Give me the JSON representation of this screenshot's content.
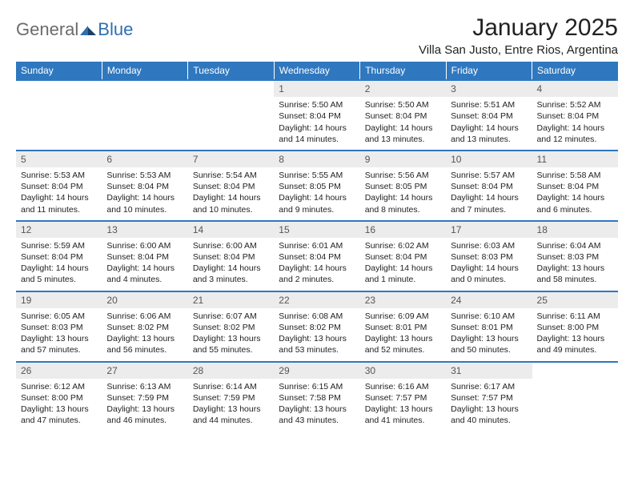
{
  "logo": {
    "word1": "General",
    "word2": "Blue"
  },
  "title": "January 2025",
  "location": "Villa San Justo, Entre Rios, Argentina",
  "colors": {
    "header_bg": "#2f78bf",
    "header_fg": "#ffffff",
    "daynum_bg": "#ececec",
    "week_border": "#2f78bf",
    "text": "#222222",
    "logo_gray": "#6b6b6b",
    "logo_blue": "#2f6fb0"
  },
  "day_headers": [
    "Sunday",
    "Monday",
    "Tuesday",
    "Wednesday",
    "Thursday",
    "Friday",
    "Saturday"
  ],
  "weeks": [
    [
      {
        "blank": true
      },
      {
        "blank": true
      },
      {
        "blank": true
      },
      {
        "n": "1",
        "sunrise": "5:50 AM",
        "sunset": "8:04 PM",
        "daylight": "14 hours and 14 minutes."
      },
      {
        "n": "2",
        "sunrise": "5:50 AM",
        "sunset": "8:04 PM",
        "daylight": "14 hours and 13 minutes."
      },
      {
        "n": "3",
        "sunrise": "5:51 AM",
        "sunset": "8:04 PM",
        "daylight": "14 hours and 13 minutes."
      },
      {
        "n": "4",
        "sunrise": "5:52 AM",
        "sunset": "8:04 PM",
        "daylight": "14 hours and 12 minutes."
      }
    ],
    [
      {
        "n": "5",
        "sunrise": "5:53 AM",
        "sunset": "8:04 PM",
        "daylight": "14 hours and 11 minutes."
      },
      {
        "n": "6",
        "sunrise": "5:53 AM",
        "sunset": "8:04 PM",
        "daylight": "14 hours and 10 minutes."
      },
      {
        "n": "7",
        "sunrise": "5:54 AM",
        "sunset": "8:04 PM",
        "daylight": "14 hours and 10 minutes."
      },
      {
        "n": "8",
        "sunrise": "5:55 AM",
        "sunset": "8:05 PM",
        "daylight": "14 hours and 9 minutes."
      },
      {
        "n": "9",
        "sunrise": "5:56 AM",
        "sunset": "8:05 PM",
        "daylight": "14 hours and 8 minutes."
      },
      {
        "n": "10",
        "sunrise": "5:57 AM",
        "sunset": "8:04 PM",
        "daylight": "14 hours and 7 minutes."
      },
      {
        "n": "11",
        "sunrise": "5:58 AM",
        "sunset": "8:04 PM",
        "daylight": "14 hours and 6 minutes."
      }
    ],
    [
      {
        "n": "12",
        "sunrise": "5:59 AM",
        "sunset": "8:04 PM",
        "daylight": "14 hours and 5 minutes."
      },
      {
        "n": "13",
        "sunrise": "6:00 AM",
        "sunset": "8:04 PM",
        "daylight": "14 hours and 4 minutes."
      },
      {
        "n": "14",
        "sunrise": "6:00 AM",
        "sunset": "8:04 PM",
        "daylight": "14 hours and 3 minutes."
      },
      {
        "n": "15",
        "sunrise": "6:01 AM",
        "sunset": "8:04 PM",
        "daylight": "14 hours and 2 minutes."
      },
      {
        "n": "16",
        "sunrise": "6:02 AM",
        "sunset": "8:04 PM",
        "daylight": "14 hours and 1 minute."
      },
      {
        "n": "17",
        "sunrise": "6:03 AM",
        "sunset": "8:03 PM",
        "daylight": "14 hours and 0 minutes."
      },
      {
        "n": "18",
        "sunrise": "6:04 AM",
        "sunset": "8:03 PM",
        "daylight": "13 hours and 58 minutes."
      }
    ],
    [
      {
        "n": "19",
        "sunrise": "6:05 AM",
        "sunset": "8:03 PM",
        "daylight": "13 hours and 57 minutes."
      },
      {
        "n": "20",
        "sunrise": "6:06 AM",
        "sunset": "8:02 PM",
        "daylight": "13 hours and 56 minutes."
      },
      {
        "n": "21",
        "sunrise": "6:07 AM",
        "sunset": "8:02 PM",
        "daylight": "13 hours and 55 minutes."
      },
      {
        "n": "22",
        "sunrise": "6:08 AM",
        "sunset": "8:02 PM",
        "daylight": "13 hours and 53 minutes."
      },
      {
        "n": "23",
        "sunrise": "6:09 AM",
        "sunset": "8:01 PM",
        "daylight": "13 hours and 52 minutes."
      },
      {
        "n": "24",
        "sunrise": "6:10 AM",
        "sunset": "8:01 PM",
        "daylight": "13 hours and 50 minutes."
      },
      {
        "n": "25",
        "sunrise": "6:11 AM",
        "sunset": "8:00 PM",
        "daylight": "13 hours and 49 minutes."
      }
    ],
    [
      {
        "n": "26",
        "sunrise": "6:12 AM",
        "sunset": "8:00 PM",
        "daylight": "13 hours and 47 minutes."
      },
      {
        "n": "27",
        "sunrise": "6:13 AM",
        "sunset": "7:59 PM",
        "daylight": "13 hours and 46 minutes."
      },
      {
        "n": "28",
        "sunrise": "6:14 AM",
        "sunset": "7:59 PM",
        "daylight": "13 hours and 44 minutes."
      },
      {
        "n": "29",
        "sunrise": "6:15 AM",
        "sunset": "7:58 PM",
        "daylight": "13 hours and 43 minutes."
      },
      {
        "n": "30",
        "sunrise": "6:16 AM",
        "sunset": "7:57 PM",
        "daylight": "13 hours and 41 minutes."
      },
      {
        "n": "31",
        "sunrise": "6:17 AM",
        "sunset": "7:57 PM",
        "daylight": "13 hours and 40 minutes."
      },
      {
        "blank": true
      }
    ]
  ],
  "labels": {
    "sunrise": "Sunrise:",
    "sunset": "Sunset:",
    "daylight": "Daylight:"
  }
}
